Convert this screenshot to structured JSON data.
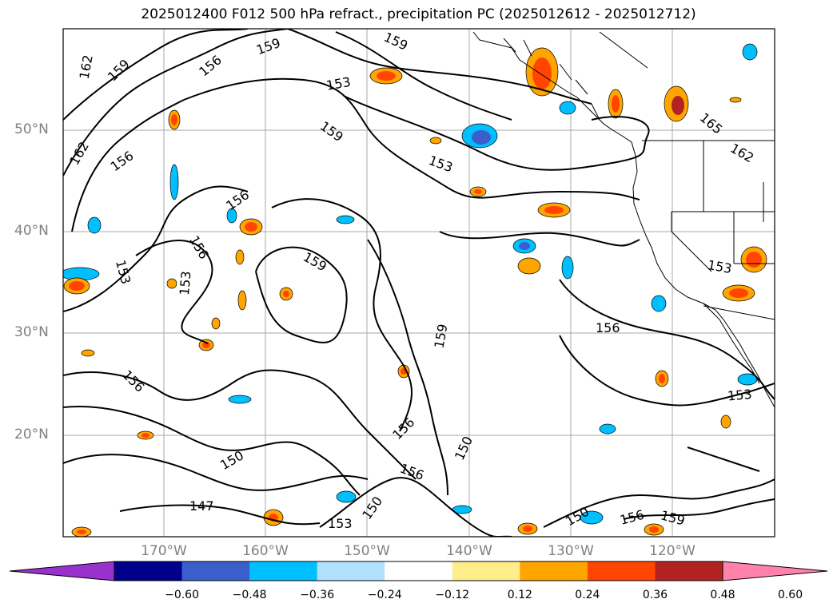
{
  "title": "2025012400 F012 500 hPa refract., precipitation PC (2025012612 - 2025012712)",
  "map": {
    "lat_labels": [
      "50°N",
      "40°N",
      "30°N",
      "20°N"
    ],
    "lon_labels": [
      "170°W",
      "160°W",
      "150°W",
      "140°W",
      "130°W",
      "120°W"
    ],
    "contour_labels": [
      "162",
      "159",
      "156",
      "159",
      "153",
      "159",
      "162",
      "156",
      "153",
      "156",
      "159",
      "156",
      "153",
      "159",
      "153",
      "156",
      "159",
      "150",
      "156",
      "150",
      "147",
      "150",
      "153",
      "150",
      "156",
      "159",
      "153",
      "153",
      "162",
      "165"
    ]
  },
  "colorbar": {
    "ticks": [
      "−0.60",
      "−0.48",
      "−0.36",
      "−0.24",
      "−0.12",
      "0.12",
      "0.24",
      "0.36",
      "0.48",
      "0.60"
    ],
    "colors": [
      "#9932cc",
      "#00008b",
      "#3a5fcd",
      "#00bfff",
      "#b0e2ff",
      "#ffffff",
      "#ffec8b",
      "#ffa500",
      "#ff4500",
      "#b22222",
      "#ff82ab"
    ]
  },
  "colors": {
    "grid": "#a9a9a9",
    "contour": "#000000",
    "label": "#808080"
  }
}
